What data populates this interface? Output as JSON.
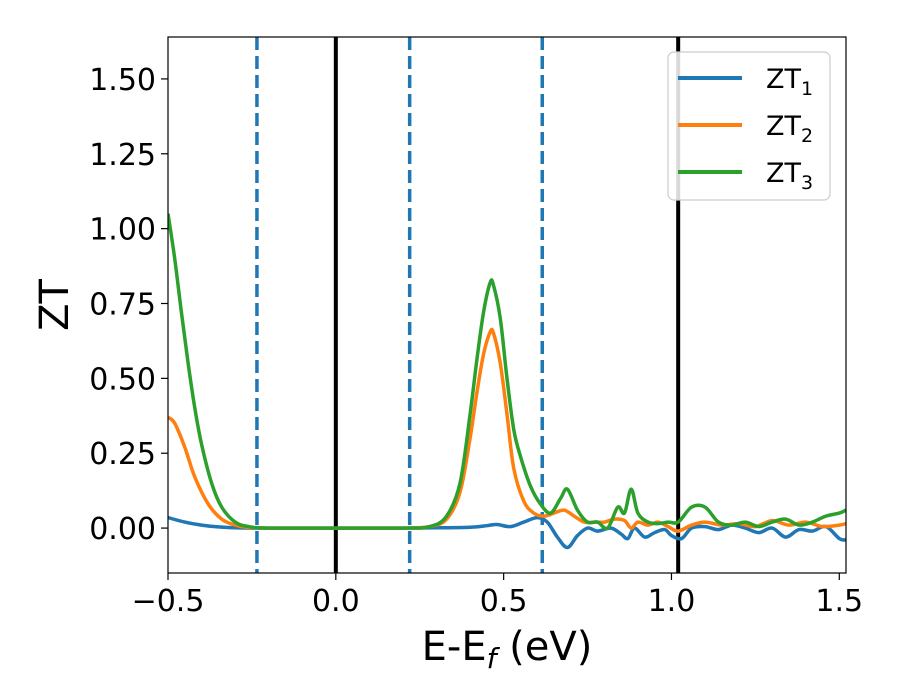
{
  "chart_data": {
    "type": "line",
    "xlabel": "E-E",
    "xlabel_sub": "f",
    "xlabel_unit": " (eV)",
    "ylabel": "ZT",
    "xlim": [
      -0.5,
      1.52
    ],
    "ylim": [
      -0.15,
      1.64
    ],
    "xticks": [
      -0.5,
      0.0,
      0.5,
      1.0,
      1.5
    ],
    "xtick_labels": [
      "−0.5",
      "0.0",
      "0.5",
      "1.0",
      "1.5"
    ],
    "yticks": [
      0.0,
      0.25,
      0.5,
      0.75,
      1.0,
      1.25,
      1.5
    ],
    "ytick_labels": [
      "0.00",
      "0.25",
      "0.50",
      "0.75",
      "1.00",
      "1.25",
      "1.50"
    ],
    "grid": false,
    "legend_position": "top-right",
    "vlines_solid": [
      0.0,
      1.02
    ],
    "vlines_dashed": [
      -0.235,
      0.22,
      0.615
    ],
    "vline_dashed_color": "#1f77b4",
    "vline_solid_color": "#000000",
    "series": [
      {
        "name": "ZT",
        "name_sub": "1",
        "color": "#1f77b4",
        "x": [
          -0.5,
          -0.45,
          -0.4,
          -0.35,
          -0.3,
          -0.25,
          -0.2,
          0.0,
          0.2,
          0.3,
          0.4,
          0.45,
          0.48,
          0.52,
          0.56,
          0.6,
          0.63,
          0.66,
          0.69,
          0.72,
          0.75,
          0.78,
          0.82,
          0.85,
          0.87,
          0.89,
          0.92,
          0.95,
          0.98,
          1.0,
          1.03,
          1.06,
          1.1,
          1.14,
          1.18,
          1.22,
          1.26,
          1.3,
          1.34,
          1.38,
          1.42,
          1.46,
          1.5,
          1.52
        ],
        "y": [
          0.035,
          0.02,
          0.01,
          0.004,
          0.001,
          0.0,
          0.0,
          0.0,
          0.0,
          0.001,
          0.003,
          0.008,
          0.012,
          0.005,
          0.02,
          0.035,
          0.02,
          -0.03,
          -0.065,
          -0.025,
          0.0,
          -0.01,
          0.0,
          -0.02,
          -0.035,
          0.0,
          -0.03,
          -0.015,
          -0.005,
          -0.025,
          -0.035,
          0.0,
          0.005,
          -0.005,
          0.01,
          0.0,
          -0.015,
          0.0,
          -0.03,
          -0.005,
          -0.01,
          0.005,
          -0.035,
          -0.04
        ]
      },
      {
        "name": "ZT",
        "name_sub": "2",
        "color": "#ff7f0e",
        "x": [
          -0.5,
          -0.48,
          -0.45,
          -0.42,
          -0.38,
          -0.34,
          -0.3,
          -0.26,
          -0.2,
          0.0,
          0.2,
          0.28,
          0.33,
          0.37,
          0.4,
          0.42,
          0.44,
          0.46,
          0.47,
          0.49,
          0.51,
          0.53,
          0.56,
          0.59,
          0.62,
          0.65,
          0.68,
          0.71,
          0.74,
          0.77,
          0.8,
          0.83,
          0.86,
          0.88,
          0.9,
          0.93,
          0.96,
          0.99,
          1.02,
          1.06,
          1.1,
          1.15,
          1.2,
          1.25,
          1.3,
          1.35,
          1.4,
          1.45,
          1.5,
          1.52
        ],
        "y": [
          0.37,
          0.35,
          0.27,
          0.17,
          0.08,
          0.03,
          0.01,
          0.002,
          0.0,
          0.0,
          0.0,
          0.005,
          0.03,
          0.12,
          0.3,
          0.45,
          0.58,
          0.655,
          0.65,
          0.55,
          0.38,
          0.2,
          0.09,
          0.05,
          0.04,
          0.05,
          0.06,
          0.04,
          0.02,
          0.02,
          0.02,
          0.03,
          0.025,
          0.0,
          0.02,
          0.01,
          0.02,
          0.005,
          -0.01,
          0.01,
          0.02,
          0.01,
          0.015,
          0.005,
          0.025,
          0.01,
          0.02,
          0.005,
          0.01,
          0.015
        ]
      },
      {
        "name": "ZT",
        "name_sub": "3",
        "color": "#2ca02c",
        "x": [
          -0.5,
          -0.48,
          -0.46,
          -0.44,
          -0.42,
          -0.4,
          -0.37,
          -0.34,
          -0.3,
          -0.26,
          -0.2,
          0.0,
          0.2,
          0.28,
          0.33,
          0.37,
          0.4,
          0.42,
          0.44,
          0.46,
          0.47,
          0.49,
          0.51,
          0.53,
          0.55,
          0.58,
          0.61,
          0.64,
          0.67,
          0.69,
          0.72,
          0.75,
          0.78,
          0.81,
          0.84,
          0.86,
          0.88,
          0.9,
          0.93,
          0.96,
          0.99,
          1.02,
          1.06,
          1.1,
          1.14,
          1.18,
          1.22,
          1.26,
          1.3,
          1.34,
          1.38,
          1.42,
          1.46,
          1.5,
          1.52
        ],
        "y": [
          1.05,
          0.9,
          0.72,
          0.55,
          0.4,
          0.28,
          0.15,
          0.07,
          0.02,
          0.005,
          0.0,
          0.0,
          0.0,
          0.005,
          0.04,
          0.15,
          0.38,
          0.56,
          0.72,
          0.82,
          0.81,
          0.7,
          0.5,
          0.33,
          0.24,
          0.14,
          0.08,
          0.05,
          0.1,
          0.13,
          0.06,
          0.02,
          0.02,
          0.0,
          0.07,
          0.05,
          0.13,
          0.05,
          0.02,
          0.015,
          0.02,
          0.02,
          0.07,
          0.07,
          0.02,
          0.01,
          0.02,
          0.005,
          0.02,
          0.03,
          0.01,
          0.02,
          0.04,
          0.05,
          0.06
        ]
      }
    ]
  }
}
